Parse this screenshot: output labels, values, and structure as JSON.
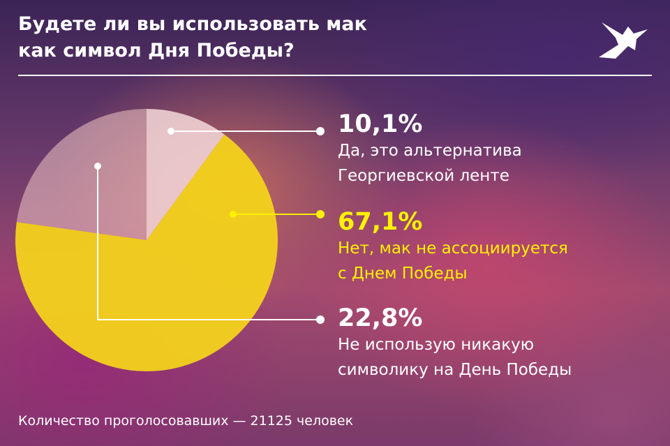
{
  "header": {
    "title_lines": [
      "Будете ли вы использовать мак",
      "как символ Дня Победы?"
    ],
    "logo_icon": "bird-icon"
  },
  "chart_data": {
    "type": "pie",
    "title": "Будете ли вы использовать мак как символ Дня Победы?",
    "slices": [
      {
        "percent_label": "10,1%",
        "value": 10.1,
        "label_lines": [
          "Да, это альтернатива",
          "Георгиевской ленте"
        ],
        "color": "#f6d9d9"
      },
      {
        "percent_label": "67,1%",
        "value": 67.1,
        "label_lines": [
          "Нет, мак не ассоциируется",
          "с Днем Победы"
        ],
        "color": "#f3d21b"
      },
      {
        "percent_label": "22,8%",
        "value": 22.8,
        "label_lines": [
          "Не использую никакую",
          "символику на День Победы"
        ],
        "color": "#f1c6c4"
      }
    ]
  },
  "footer": {
    "text": "Количество проголосовавших — 21125 человек"
  },
  "colors": {
    "highlight": "#fff200",
    "text": "#ffffff"
  }
}
